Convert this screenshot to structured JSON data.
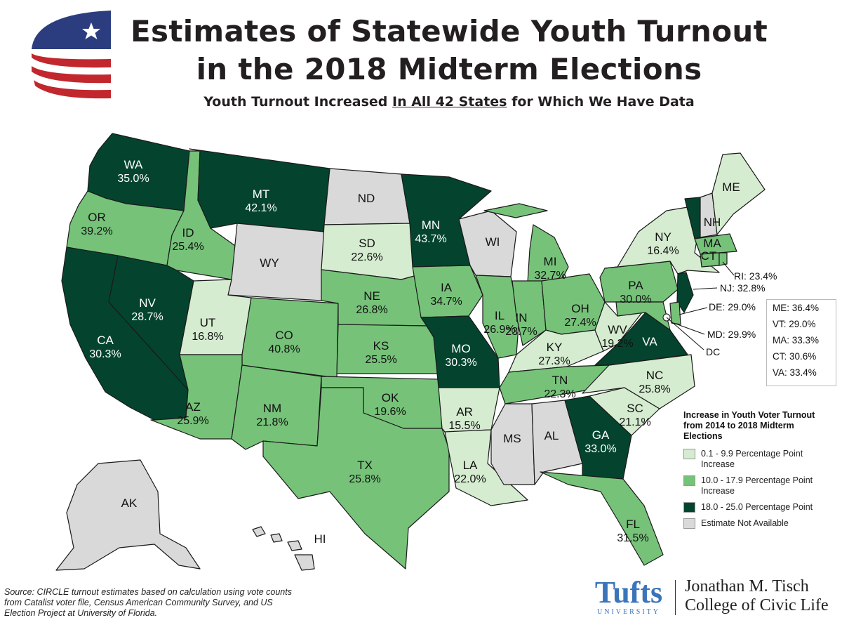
{
  "title_line1": "Estimates of Statewide Youth Turnout",
  "title_line2": "in the 2018 Midterm Elections",
  "subtitle_pre": "Youth Turnout Increased ",
  "subtitle_em": "In All 42 States",
  "subtitle_post": " for Which We Have Data",
  "colors": {
    "light": "#d5ecd0",
    "medium": "#76c279",
    "dark": "#04442e",
    "na": "#d9d9d9",
    "flag_blue": "#2c3d7f",
    "flag_red": "#c1272d"
  },
  "states": {
    "WA": {
      "abbr": "WA",
      "value": "35.0%",
      "cat": "dark"
    },
    "OR": {
      "abbr": "OR",
      "value": "39.2%",
      "cat": "medium"
    },
    "CA": {
      "abbr": "CA",
      "value": "30.3%",
      "cat": "dark"
    },
    "NV": {
      "abbr": "NV",
      "value": "28.7%",
      "cat": "dark"
    },
    "ID": {
      "abbr": "ID",
      "value": "25.4%",
      "cat": "medium"
    },
    "MT": {
      "abbr": "MT",
      "value": "42.1%",
      "cat": "dark"
    },
    "WY": {
      "abbr": "WY",
      "value": "",
      "cat": "na"
    },
    "UT": {
      "abbr": "UT",
      "value": "16.8%",
      "cat": "light"
    },
    "CO": {
      "abbr": "CO",
      "value": "40.8%",
      "cat": "medium"
    },
    "AZ": {
      "abbr": "AZ",
      "value": "25.9%",
      "cat": "medium"
    },
    "NM": {
      "abbr": "NM",
      "value": "21.8%",
      "cat": "medium"
    },
    "ND": {
      "abbr": "ND",
      "value": "",
      "cat": "na"
    },
    "SD": {
      "abbr": "SD",
      "value": "22.6%",
      "cat": "light"
    },
    "NE": {
      "abbr": "NE",
      "value": "26.8%",
      "cat": "medium"
    },
    "KS": {
      "abbr": "KS",
      "value": "25.5%",
      "cat": "medium"
    },
    "OK": {
      "abbr": "OK",
      "value": "19.6%",
      "cat": "medium"
    },
    "TX": {
      "abbr": "TX",
      "value": "25.8%",
      "cat": "medium"
    },
    "MN": {
      "abbr": "MN",
      "value": "43.7%",
      "cat": "dark"
    },
    "IA": {
      "abbr": "IA",
      "value": "34.7%",
      "cat": "medium"
    },
    "MO": {
      "abbr": "MO",
      "value": "30.3%",
      "cat": "dark"
    },
    "AR": {
      "abbr": "AR",
      "value": "15.5%",
      "cat": "light"
    },
    "LA": {
      "abbr": "LA",
      "value": "22.0%",
      "cat": "light"
    },
    "WI": {
      "abbr": "WI",
      "value": "",
      "cat": "na"
    },
    "IL": {
      "abbr": "IL",
      "value": "26.9%",
      "cat": "medium"
    },
    "MI": {
      "abbr": "MI",
      "value": "32.7%",
      "cat": "medium"
    },
    "IN": {
      "abbr": "IN",
      "value": "23.7%",
      "cat": "medium"
    },
    "OH": {
      "abbr": "OH",
      "value": "27.4%",
      "cat": "medium"
    },
    "KY": {
      "abbr": "KY",
      "value": "27.3%",
      "cat": "light"
    },
    "TN": {
      "abbr": "TN",
      "value": "22.3%",
      "cat": "medium"
    },
    "MS": {
      "abbr": "MS",
      "value": "",
      "cat": "na"
    },
    "AL": {
      "abbr": "AL",
      "value": "",
      "cat": "na"
    },
    "GA": {
      "abbr": "GA",
      "value": "33.0%",
      "cat": "dark"
    },
    "FL": {
      "abbr": "FL",
      "value": "31.5%",
      "cat": "medium"
    },
    "SC": {
      "abbr": "SC",
      "value": "21.1%",
      "cat": "light"
    },
    "NC": {
      "abbr": "NC",
      "value": "25.8%",
      "cat": "light"
    },
    "VA": {
      "abbr": "VA",
      "value": "",
      "cat": "dark"
    },
    "WV": {
      "abbr": "WV",
      "value": "19.2%",
      "cat": "light"
    },
    "PA": {
      "abbr": "PA",
      "value": "30.0%",
      "cat": "medium"
    },
    "NY": {
      "abbr": "NY",
      "value": "16.4%",
      "cat": "light"
    },
    "VT": {
      "abbr": "VT",
      "value": "",
      "cat": "dark"
    },
    "NH": {
      "abbr": "NH",
      "value": "",
      "cat": "na"
    },
    "ME": {
      "abbr": "ME",
      "value": "",
      "cat": "light"
    },
    "MA": {
      "abbr": "MA",
      "value": "",
      "cat": "medium"
    },
    "CT": {
      "abbr": "CT",
      "value": "",
      "cat": "medium"
    },
    "RI": {
      "abbr": "RI",
      "value": "",
      "cat": "medium"
    },
    "NJ": {
      "abbr": "NJ",
      "value": "",
      "cat": "dark"
    },
    "DE": {
      "abbr": "DE",
      "value": "",
      "cat": "medium"
    },
    "MD": {
      "abbr": "MD",
      "value": "",
      "cat": "medium"
    },
    "AK": {
      "abbr": "AK",
      "value": "",
      "cat": "na"
    },
    "HI": {
      "abbr": "HI",
      "value": "",
      "cat": "na"
    }
  },
  "side_labels": {
    "RI": "RI: 23.4%",
    "NJ": "NJ: 32.8%",
    "DE": "DE: 29.0%",
    "MD": "MD: 29.9%",
    "DC": "DC"
  },
  "northeast_box": [
    "ME: 36.4%",
    "VT: 29.0%",
    "MA: 33.3%",
    "CT: 30.6%",
    "VA: 33.4%"
  ],
  "legend": {
    "title": "Increase in Youth Voter Turnout from 2014 to 2018 Midterm Elections",
    "items": [
      {
        "cat": "light",
        "label": "0.1 - 9.9 Percentage Point Increase"
      },
      {
        "cat": "medium",
        "label": "10.0 - 17.9 Percentage Point Increase"
      },
      {
        "cat": "dark",
        "label": "18.0 - 25.0 Percentage Point"
      },
      {
        "cat": "na",
        "label": "Estimate Not Available"
      }
    ]
  },
  "source": "Source:  CIRCLE turnout estimates based on calculation using vote counts from Catalist voter file, Census American Community Survey, and US Election Project at University of Florida.",
  "tufts": {
    "name": "Tufts",
    "sub": "UNIVERSITY"
  },
  "college": {
    "line1": "Jonathan M. Tisch",
    "line2": "College of Civic Life"
  }
}
